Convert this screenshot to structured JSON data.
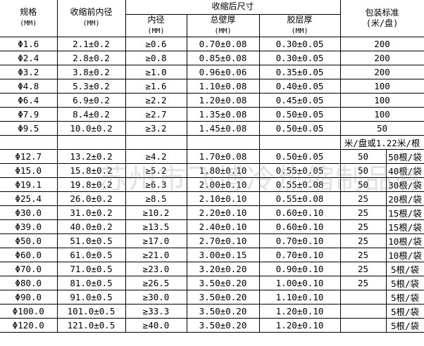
{
  "header": {
    "spec": "规格",
    "spec_unit": "(MM)",
    "pre_id": "收缩前内径",
    "pre_id_unit": "(MM)",
    "post_group": "收缩后尺寸",
    "post_id": "内径",
    "post_id_unit": "(MM)",
    "wall": "总壁厚",
    "wall_unit": "(MM)",
    "glue": "胶层厚",
    "glue_unit": "(MM)",
    "pack": "包装标准",
    "pack_unit": "(米/盘)"
  },
  "rows_a": [
    [
      "Φ1.6",
      "2.1±0.2",
      "≥0.6",
      "0.70±0.08",
      "0.30±0.05",
      "200"
    ],
    [
      "Φ2.4",
      "2.8±0.2",
      "≥0.8",
      "0.85±0.08",
      "0.30±0.05",
      "200"
    ],
    [
      "Φ3.2",
      "3.8±0.2",
      "≥1.0",
      "0.96±0.06",
      "0.35±0.05",
      "200"
    ],
    [
      "Φ4.8",
      "5.3±0.2",
      "≥1.6",
      "1.10±0.08",
      "0.40±0.05",
      "100"
    ],
    [
      "Φ6.4",
      "6.9±0.2",
      "≥2.2",
      "1.20±0.08",
      "0.45±0.05",
      "100"
    ],
    [
      "Φ7.9",
      "8.4±0.2",
      "≥2.7",
      "1.35±0.08",
      "0.50±0.05",
      "100"
    ],
    [
      "Φ9.5",
      "10.0±0.2",
      "≥3.2",
      "1.45±0.08",
      "0.50±0.05",
      "50"
    ]
  ],
  "pack_note": "米/盘或1.22米/根",
  "rows_b": [
    [
      "Φ12.7",
      "13.2±0.2",
      "≥4.2",
      "1.70±0.08",
      "0.50±0.05",
      "50",
      "50根/袋"
    ],
    [
      "Φ15.0",
      "15.8±0.2",
      "≥5.2",
      "1.80±0.10",
      "0.55±0.05",
      "50",
      "40根/袋"
    ],
    [
      "Φ19.1",
      "19.8±0.2",
      "≥6.3",
      "2.00±0.10",
      "0.55±0.08",
      "50",
      "30根/袋"
    ],
    [
      "Φ25.4",
      "26.0±0.2",
      "≥8.5",
      "2.10±0.10",
      "0.55±0.08",
      "25",
      "20根/袋"
    ],
    [
      "Φ30.0",
      "31.0±0.2",
      "≥10.2",
      "2.20±0.10",
      "0.60±0.10",
      "25",
      "15根/袋"
    ],
    [
      "Φ39.0",
      "40.0±0.2",
      "≥13.5",
      "2.40±0.10",
      "0.60±0.10",
      "25",
      "15根/袋"
    ],
    [
      "Φ50.0",
      "51.0±0.5",
      "≥17.0",
      "2.70±0.10",
      "0.70±0.10",
      "25",
      "10根/袋"
    ],
    [
      "Φ60.0",
      "61.0±0.5",
      "≥21.0",
      "3.00±0.15",
      "0.70±0.10",
      "25",
      "10根/袋"
    ],
    [
      "Φ70.0",
      "71.0±0.5",
      "≥23.0",
      "3.20±0.20",
      "0.90±0.10",
      "25",
      "5根/袋"
    ],
    [
      "Φ80.0",
      "81.0±0.5",
      "≥26.5",
      "3.50±0.20",
      "1.00±0.10",
      "25",
      "5根/袋"
    ],
    [
      "Φ90.0",
      "91.0±0.5",
      "≥30.0",
      "3.50±0.20",
      "1.10±0.10",
      "",
      "5根/袋"
    ],
    [
      "Φ100.0",
      "101.0±0.5",
      "≥33.3",
      "3.50±0.20",
      "1.20±0.10",
      "",
      "5根/袋"
    ],
    [
      "Φ120.0",
      "121.0±0.5",
      "≥40.0",
      "3.50±0.20",
      "1.20±0.10",
      "",
      "5根/袋"
    ]
  ],
  "watermark": "苏州市飞博冷热缩制品有限公司"
}
